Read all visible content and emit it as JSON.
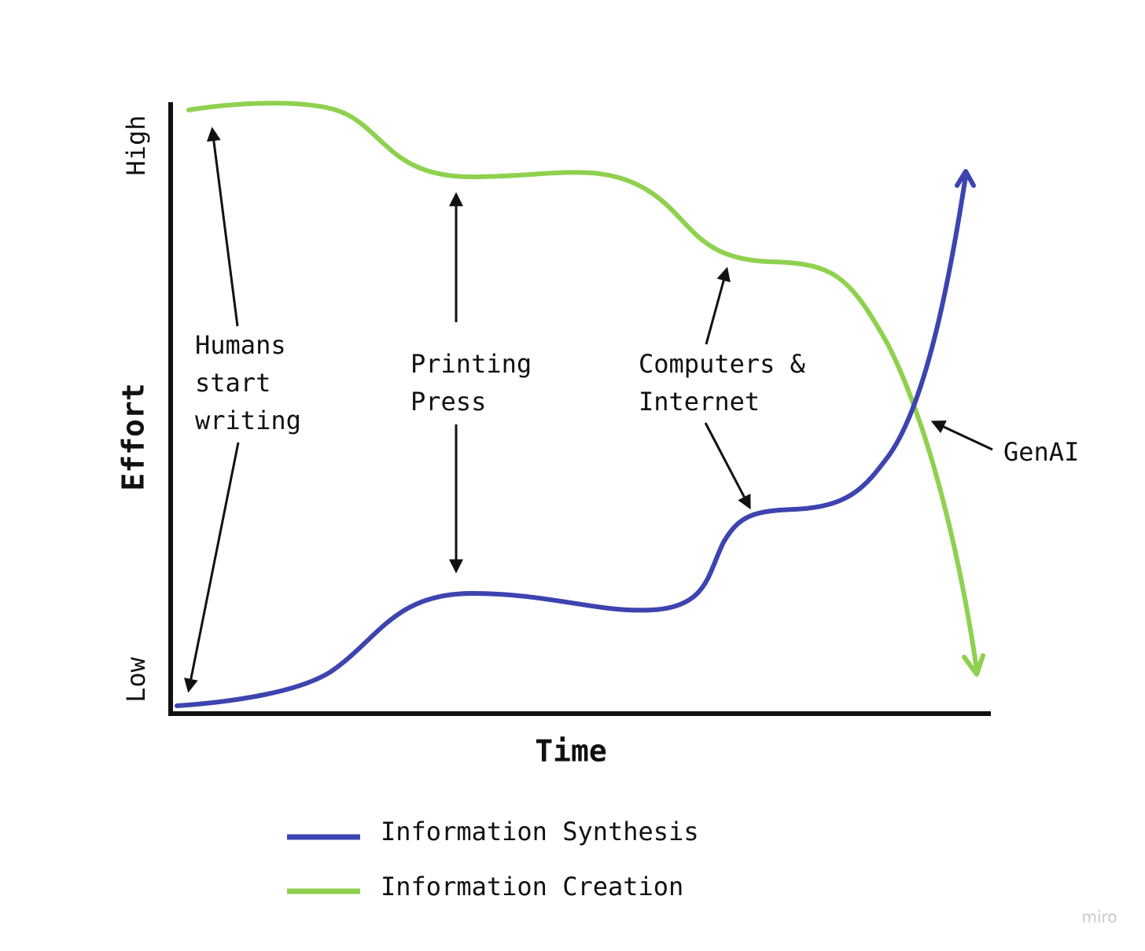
{
  "axes": {
    "y_label": "Effort",
    "x_label": "Time",
    "y_high": "High",
    "y_low": "Low"
  },
  "annotations": [
    {
      "lines": [
        "Humans",
        "start",
        "writing"
      ]
    },
    {
      "lines": [
        "Printing",
        "Press"
      ]
    },
    {
      "lines": [
        "Computers &",
        "Internet"
      ]
    },
    {
      "lines": [
        "GenAI"
      ]
    }
  ],
  "legend": [
    {
      "label": "Information Synthesis"
    },
    {
      "label": "Information Creation"
    }
  ],
  "watermark": "miro"
}
